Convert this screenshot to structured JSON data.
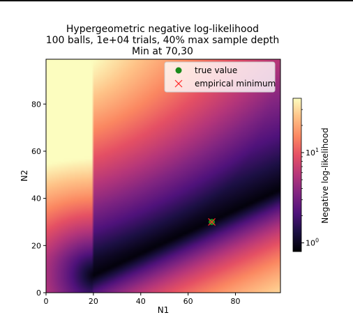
{
  "chart_data": {
    "type": "heatmap",
    "title": [
      "Hypergeometric negative log-likelihood",
      "100 balls, 1e+04 trials, 40% max sample depth",
      "Min at 70,30"
    ],
    "xlabel": "N1",
    "ylabel": "N2",
    "xlim": [
      0,
      99
    ],
    "ylim": [
      0,
      99
    ],
    "xticks": [
      0,
      20,
      40,
      60,
      80
    ],
    "yticks": [
      0,
      20,
      40,
      60,
      80
    ],
    "colormap": "magma",
    "colorbar": {
      "label": "Negative log-likelihood",
      "scale": "log",
      "range": [
        0.8,
        40
      ],
      "tick_labels": [
        "10^0",
        "10^1"
      ],
      "tick_values": [
        1,
        10
      ]
    },
    "legend": {
      "placement": "upper right",
      "entries": [
        {
          "label": "true value",
          "marker": "circle",
          "color": "#1a8a1a"
        },
        {
          "label": "empirical minimum",
          "marker": "x",
          "color": "#ff2a2a"
        }
      ]
    },
    "true_value": {
      "x": 70,
      "y": 30
    },
    "empirical_minimum": {
      "x": 70,
      "y": 30
    }
  }
}
